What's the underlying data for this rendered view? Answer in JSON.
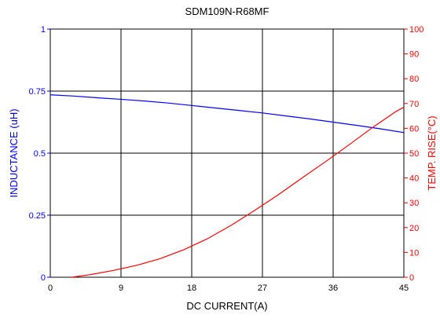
{
  "chart_data": {
    "type": "line",
    "title": "SDM109N-R68MF",
    "xlabel": "DC CURRENT(A)",
    "ylabel_left": "INDUCTANCE (uH)",
    "ylabel_right": "TEMP. RISE(°C)",
    "xlim": [
      0,
      45
    ],
    "ylim_left": [
      0,
      1
    ],
    "ylim_right": [
      0,
      100
    ],
    "x_ticks": [
      "0",
      "9",
      "18",
      "27",
      "36",
      "45"
    ],
    "y_ticks_left": [
      "0",
      "0.25",
      "0.5",
      "0.75",
      "1"
    ],
    "y_ticks_right": [
      "0",
      "10",
      "20",
      "30",
      "40",
      "50",
      "60",
      "70",
      "80",
      "90",
      "100"
    ],
    "grid": true,
    "series": [
      {
        "axis": "left",
        "color": "#0000ff",
        "x": [
          0,
          3,
          6,
          9,
          12,
          15,
          18,
          21,
          24,
          27,
          30,
          33,
          36,
          39,
          42,
          45
        ],
        "y": [
          0.735,
          0.73,
          0.723,
          0.717,
          0.71,
          0.702,
          0.692,
          0.682,
          0.672,
          0.662,
          0.65,
          0.638,
          0.625,
          0.612,
          0.598,
          0.583
        ]
      },
      {
        "axis": "right",
        "color": "#ff0000",
        "x": [
          2.7,
          5,
          8,
          11,
          14,
          17,
          20,
          23,
          26,
          29,
          32,
          35,
          38,
          41,
          44,
          45
        ],
        "y": [
          0,
          1,
          2.7,
          4.8,
          7.5,
          11.1,
          15.5,
          20.9,
          26.9,
          33.2,
          39.9,
          46.5,
          53.3,
          60.3,
          66.8,
          68.5
        ]
      }
    ]
  }
}
